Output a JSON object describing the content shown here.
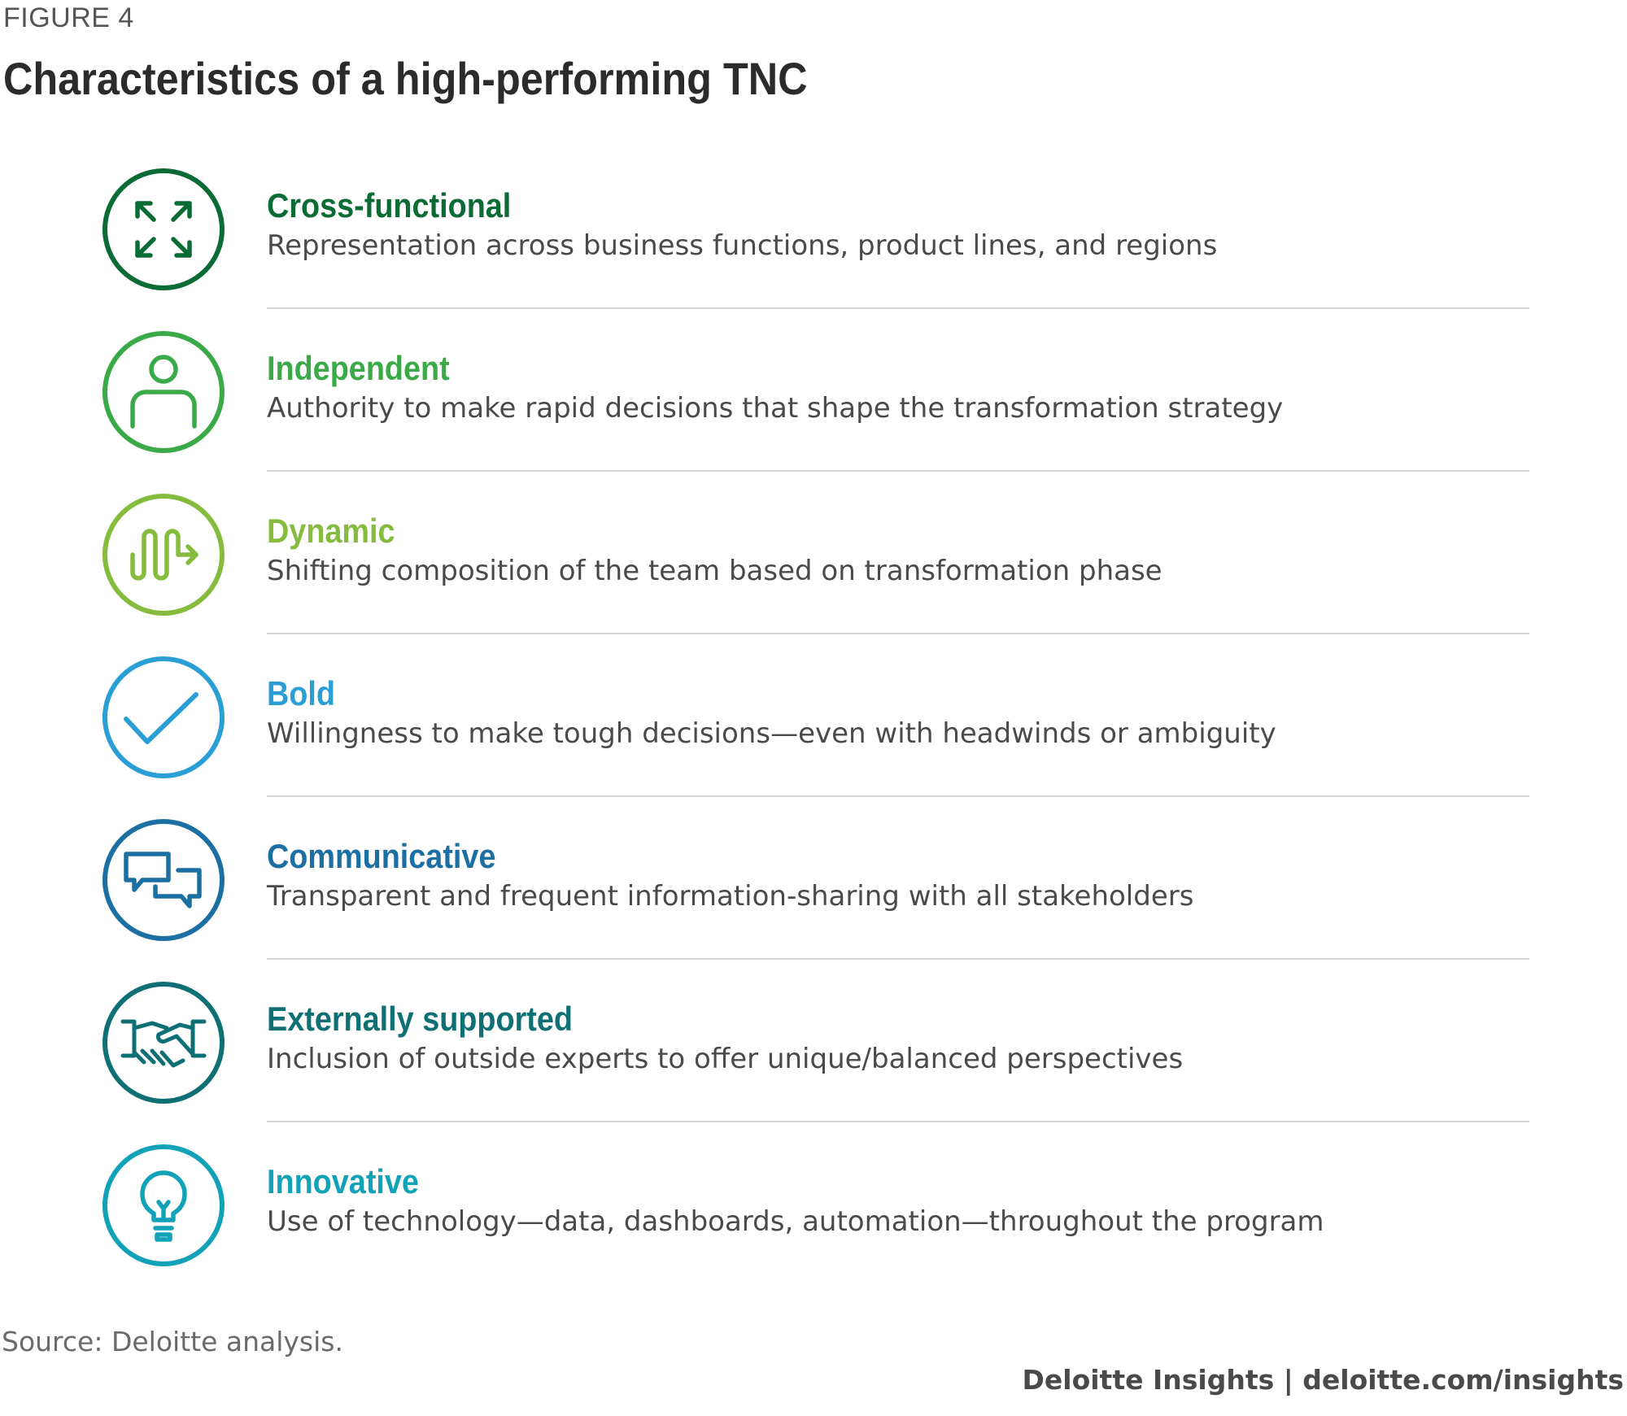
{
  "figure_label": "FIGURE 4",
  "title": "Characteristics of a high-performing TNC",
  "items": [
    {
      "name": "Cross-functional",
      "description": "Representation across business functions, product lines, and regions",
      "color": "#0b6b35",
      "icon": "expand-arrows-icon"
    },
    {
      "name": "Independent",
      "description": "Authority to make rapid decisions that shape the transformation strategy",
      "color": "#3aaa48",
      "icon": "person-icon"
    },
    {
      "name": "Dynamic",
      "description": "Shifting composition of the team based on transformation phase",
      "color": "#86bc3d",
      "icon": "wave-arrow-icon"
    },
    {
      "name": "Bold",
      "description": "Willingness to make tough decisions—even with headwinds or ambiguity",
      "color": "#2a9fd6",
      "icon": "checkmark-icon"
    },
    {
      "name": "Communicative",
      "description": "Transparent and frequent information-sharing with all stakeholders",
      "color": "#1c6fa3",
      "icon": "chat-bubbles-icon"
    },
    {
      "name": "Externally supported",
      "description": "Inclusion of outside experts to offer unique/balanced perspectives",
      "color": "#0e7074",
      "icon": "handshake-icon"
    },
    {
      "name": "Innovative",
      "description": "Use of technology—data, dashboards, automation—throughout the program",
      "color": "#12a2b8",
      "icon": "lightbulb-icon"
    }
  ],
  "source": "Source: Deloitte analysis.",
  "footer": "Deloitte Insights | deloitte.com/insights"
}
